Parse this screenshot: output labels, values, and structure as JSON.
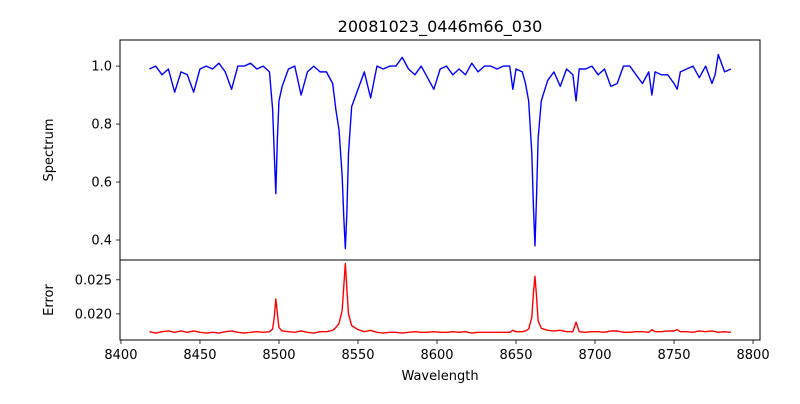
{
  "chart_data": {
    "type": "line",
    "title": "20081023_0446m66_030",
    "xlabel": "Wavelength",
    "xlim": [
      8399.4,
      8804.4
    ],
    "xticks": [
      8400,
      8450,
      8500,
      8550,
      8600,
      8650,
      8700,
      8750,
      8800
    ],
    "xtick_labels": [
      "8400",
      "8450",
      "8500",
      "8550",
      "8600",
      "8650",
      "8700",
      "8750",
      "8800"
    ],
    "panels": [
      {
        "name": "spectrum",
        "ylabel": "Spectrum",
        "ylim": [
          0.331,
          1.09
        ],
        "yticks": [
          0.4,
          0.6,
          0.8,
          1.0
        ],
        "ytick_labels": [
          "0.4",
          "0.6",
          "0.8",
          "1.0"
        ],
        "color": "#0000ff"
      },
      {
        "name": "error",
        "ylabel": "Error",
        "ylim": [
          0.01618,
          0.0279
        ],
        "yticks": [
          0.02,
          0.025
        ],
        "ytick_labels": [
          "0.020",
          "0.025"
        ],
        "color": "#ff0000"
      }
    ],
    "x": [
      8418,
      8422,
      8426,
      8430,
      8434,
      8438,
      8442,
      8446,
      8450,
      8454,
      8458,
      8462,
      8466,
      8470,
      8474,
      8478,
      8482,
      8486,
      8490,
      8494,
      8496,
      8497,
      8498,
      8499,
      8500,
      8502,
      8506,
      8510,
      8514,
      8518,
      8522,
      8526,
      8530,
      8534,
      8536,
      8538,
      8540,
      8541,
      8542,
      8543,
      8544,
      8546,
      8550,
      8554,
      8558,
      8562,
      8566,
      8570,
      8574,
      8578,
      8582,
      8586,
      8590,
      8594,
      8598,
      8602,
      8606,
      8610,
      8614,
      8618,
      8622,
      8626,
      8630,
      8634,
      8638,
      8642,
      8646,
      8648,
      8650,
      8654,
      8656,
      8658,
      8660,
      8661,
      8662,
      8663,
      8664,
      8666,
      8670,
      8674,
      8678,
      8682,
      8686,
      8688,
      8690,
      8694,
      8698,
      8702,
      8706,
      8710,
      8714,
      8718,
      8722,
      8726,
      8730,
      8734,
      8736,
      8738,
      8742,
      8746,
      8750,
      8752,
      8754,
      8758,
      8762,
      8766,
      8770,
      8774,
      8776,
      8778,
      8782,
      8786
    ],
    "spectrum": [
      0.99,
      1.0,
      0.97,
      0.99,
      0.91,
      0.98,
      0.97,
      0.91,
      0.99,
      1.0,
      0.99,
      1.01,
      0.98,
      0.92,
      1.0,
      1.0,
      1.01,
      0.99,
      1.0,
      0.98,
      0.85,
      0.7,
      0.56,
      0.75,
      0.88,
      0.93,
      0.99,
      1.0,
      0.9,
      0.98,
      1.0,
      0.98,
      0.98,
      0.94,
      0.85,
      0.78,
      0.62,
      0.48,
      0.37,
      0.5,
      0.7,
      0.86,
      0.92,
      0.98,
      0.89,
      1.0,
      0.99,
      1.0,
      1.0,
      1.03,
      0.99,
      0.97,
      1.0,
      0.96,
      0.92,
      0.99,
      1.0,
      0.97,
      0.99,
      0.97,
      1.01,
      0.98,
      1.0,
      1.0,
      0.99,
      1.0,
      1.0,
      0.92,
      0.99,
      0.98,
      0.94,
      0.88,
      0.7,
      0.52,
      0.38,
      0.55,
      0.75,
      0.88,
      0.95,
      0.98,
      0.93,
      0.99,
      0.97,
      0.88,
      0.99,
      0.99,
      1.0,
      0.97,
      0.99,
      0.93,
      0.94,
      1.0,
      1.0,
      0.97,
      0.94,
      0.98,
      0.9,
      0.98,
      0.97,
      0.97,
      0.94,
      0.92,
      0.98,
      0.99,
      1.0,
      0.96,
      1.0,
      0.94,
      0.97,
      1.04,
      0.98,
      0.99
    ],
    "error": [
      0.0174,
      0.0172,
      0.0174,
      0.0175,
      0.0173,
      0.0175,
      0.0173,
      0.0175,
      0.0173,
      0.0172,
      0.0173,
      0.0172,
      0.0174,
      0.0175,
      0.0173,
      0.0172,
      0.0173,
      0.0174,
      0.0173,
      0.0174,
      0.0178,
      0.0195,
      0.0222,
      0.02,
      0.018,
      0.0175,
      0.0174,
      0.0173,
      0.0175,
      0.0173,
      0.0172,
      0.0174,
      0.0174,
      0.0176,
      0.018,
      0.0186,
      0.0205,
      0.024,
      0.0274,
      0.0235,
      0.02,
      0.0183,
      0.0177,
      0.0174,
      0.0176,
      0.0173,
      0.0172,
      0.0173,
      0.0173,
      0.0172,
      0.0173,
      0.0174,
      0.0173,
      0.0173,
      0.0174,
      0.0173,
      0.0173,
      0.0174,
      0.0173,
      0.0174,
      0.0172,
      0.0173,
      0.0173,
      0.0173,
      0.0173,
      0.0173,
      0.0173,
      0.0176,
      0.0174,
      0.0174,
      0.0175,
      0.0178,
      0.0195,
      0.023,
      0.0255,
      0.0225,
      0.019,
      0.0179,
      0.0176,
      0.0175,
      0.0176,
      0.0174,
      0.0174,
      0.0188,
      0.0174,
      0.0173,
      0.0174,
      0.0174,
      0.0173,
      0.0175,
      0.0175,
      0.0173,
      0.0173,
      0.0174,
      0.0174,
      0.0173,
      0.0177,
      0.0174,
      0.0174,
      0.0175,
      0.0175,
      0.0177,
      0.0174,
      0.0174,
      0.0173,
      0.0175,
      0.0174,
      0.0175,
      0.0174,
      0.0173,
      0.0174,
      0.0173
    ]
  }
}
